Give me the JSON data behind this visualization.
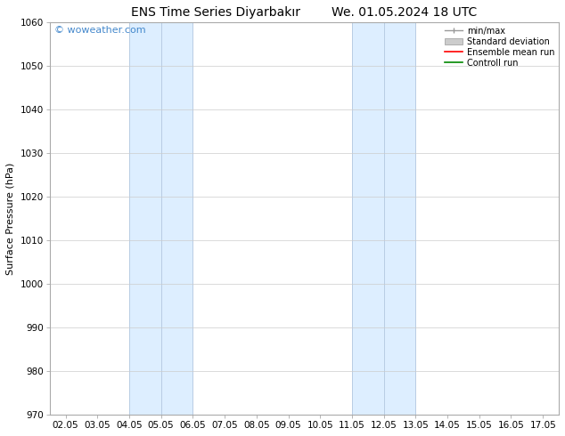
{
  "title_left": "ENS Time Series Diyarbakır",
  "title_right": "We. 01.05.2024 18 UTC",
  "ylabel": "Surface Pressure (hPa)",
  "ylim": [
    970,
    1060
  ],
  "yticks": [
    970,
    980,
    990,
    1000,
    1010,
    1020,
    1030,
    1040,
    1050,
    1060
  ],
  "xtick_labels": [
    "02.05",
    "03.05",
    "04.05",
    "05.05",
    "06.05",
    "07.05",
    "08.05",
    "09.05",
    "10.05",
    "11.05",
    "12.05",
    "13.05",
    "14.05",
    "15.05",
    "16.05",
    "17.05"
  ],
  "xtick_positions": [
    0,
    1,
    2,
    3,
    4,
    5,
    6,
    7,
    8,
    9,
    10,
    11,
    12,
    13,
    14,
    15
  ],
  "xlim": [
    -0.5,
    15.5
  ],
  "shaded_bands": [
    {
      "x_start": 2,
      "x_end": 4,
      "color": "#ddeeff"
    },
    {
      "x_start": 9,
      "x_end": 11,
      "color": "#ddeeff"
    }
  ],
  "vline_color": "#b8cce4",
  "vline_positions": [
    2,
    3,
    4,
    9,
    10,
    11
  ],
  "watermark_text": "© woweather.com",
  "watermark_color": "#4488cc",
  "background_color": "#ffffff",
  "grid_color": "#cccccc",
  "spine_color": "#aaaaaa",
  "title_fontsize": 10,
  "axis_label_fontsize": 8,
  "tick_fontsize": 7.5,
  "legend_fontsize": 7,
  "watermark_fontsize": 8,
  "legend_minmax_color": "#999999",
  "legend_std_color": "#cccccc",
  "legend_ensemble_color": "#ff0000",
  "legend_control_color": "#008800"
}
